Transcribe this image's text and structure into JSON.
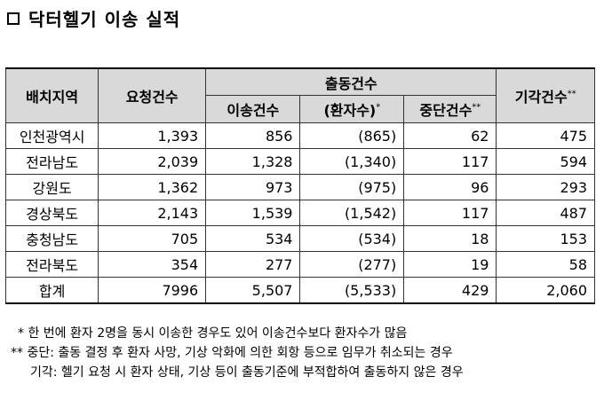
{
  "title": "닥터헬기 이송 실적",
  "table": {
    "headers": {
      "region": "배치지역",
      "requests": "요청건수",
      "dispatch_group": "출동건수",
      "transport": "이송건수",
      "patients": "(환자수)",
      "patients_mark": "*",
      "stopped": "중단건수",
      "stopped_mark": "**",
      "rejected": "기각건수",
      "rejected_mark": "**"
    },
    "rows": [
      {
        "region": "인천광역시",
        "requests": "1,393",
        "transport": "856",
        "patients": "(865)",
        "stopped": "62",
        "rejected": "475"
      },
      {
        "region": "전라남도",
        "requests": "2,039",
        "transport": "1,328",
        "patients": "(1,340)",
        "stopped": "117",
        "rejected": "594"
      },
      {
        "region": "강원도",
        "requests": "1,362",
        "transport": "973",
        "patients": "(975)",
        "stopped": "96",
        "rejected": "293"
      },
      {
        "region": "경상북도",
        "requests": "2,143",
        "transport": "1,539",
        "patients": "(1,542)",
        "stopped": "117",
        "rejected": "487"
      },
      {
        "region": "충청남도",
        "requests": "705",
        "transport": "534",
        "patients": "(534)",
        "stopped": "18",
        "rejected": "153"
      },
      {
        "region": "전라북도",
        "requests": "354",
        "transport": "277",
        "patients": "(277)",
        "stopped": "19",
        "rejected": "58"
      },
      {
        "region": "합계",
        "requests": "7996",
        "transport": "5,507",
        "patients": "(5,533)",
        "stopped": "429",
        "rejected": "2,060"
      }
    ]
  },
  "notes": {
    "n1": "* 한 번에 환자 2명을 동시 이송한 경우도 있어 이송건수보다 환자수가 많음",
    "n2": "** 중단: 출동 결정 후 환자 사망, 기상 악화에 의한 회항 등으로 임무가 취소되는 경우",
    "n3": "기각: 헬기 요청 시 환자 상태, 기상 등이 출동기준에 부적합하여 출동하지 않은 경우"
  }
}
